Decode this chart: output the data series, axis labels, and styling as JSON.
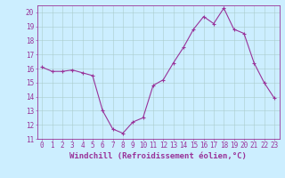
{
  "x": [
    0,
    1,
    2,
    3,
    4,
    5,
    6,
    7,
    8,
    9,
    10,
    11,
    12,
    13,
    14,
    15,
    16,
    17,
    18,
    19,
    20,
    21,
    22,
    23
  ],
  "y": [
    16.1,
    15.8,
    15.8,
    15.9,
    15.7,
    15.5,
    13.0,
    11.7,
    11.4,
    12.2,
    12.5,
    14.8,
    15.2,
    16.4,
    17.5,
    18.8,
    19.7,
    19.2,
    20.3,
    18.8,
    18.5,
    16.4,
    15.0,
    13.9
  ],
  "line_color": "#993399",
  "marker_color": "#993399",
  "bg_color": "#cceeff",
  "grid_color": "#aacccc",
  "axis_color": "#993399",
  "text_color": "#993399",
  "xlabel": "Windchill (Refroidissement éolien,°C)",
  "ylim": [
    11,
    20.5
  ],
  "xlim": [
    -0.5,
    23.5
  ],
  "yticks": [
    11,
    12,
    13,
    14,
    15,
    16,
    17,
    18,
    19,
    20
  ],
  "xticks": [
    0,
    1,
    2,
    3,
    4,
    5,
    6,
    7,
    8,
    9,
    10,
    11,
    12,
    13,
    14,
    15,
    16,
    17,
    18,
    19,
    20,
    21,
    22,
    23
  ],
  "xtick_labels": [
    "0",
    "1",
    "2",
    "3",
    "4",
    "5",
    "6",
    "7",
    "8",
    "9",
    "10",
    "11",
    "12",
    "13",
    "14",
    "15",
    "16",
    "17",
    "18",
    "19",
    "20",
    "21",
    "22",
    "23"
  ],
  "ytick_labels": [
    "11",
    "12",
    "13",
    "14",
    "15",
    "16",
    "17",
    "18",
    "19",
    "20"
  ],
  "tick_fontsize": 5.5,
  "xlabel_fontsize": 6.5,
  "linewidth": 0.8,
  "marker_size": 2.5
}
